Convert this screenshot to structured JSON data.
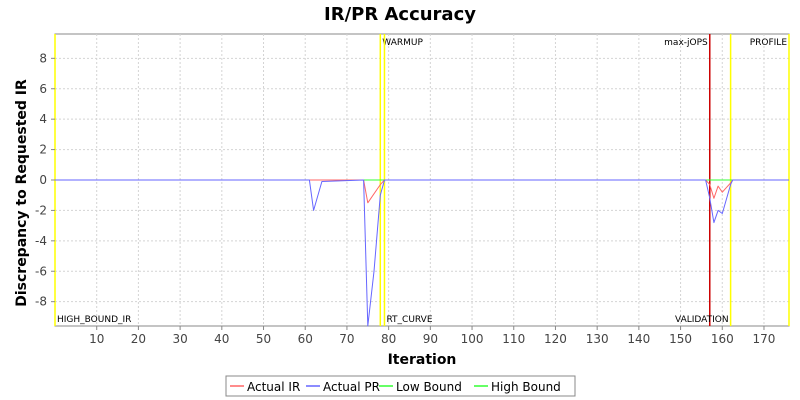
{
  "chart_data": {
    "type": "line",
    "title": "IR/PR Accuracy",
    "xlabel": "Iteration",
    "ylabel": "Discrepancy to Requested IR",
    "xlim": [
      0,
      176
    ],
    "ylim": [
      -9.6,
      9.6
    ],
    "x_ticks": [
      10,
      20,
      30,
      40,
      50,
      60,
      70,
      80,
      90,
      100,
      110,
      120,
      130,
      140,
      150,
      160,
      170
    ],
    "y_ticks": [
      8,
      6,
      4,
      2,
      0,
      -2,
      -4,
      -6,
      -8
    ],
    "grid": true,
    "legend_position": "bottom",
    "markers": [
      {
        "label": "HIGH_BOUND_IR",
        "x": 0,
        "color": "#ffff00",
        "label_pos": "bottom-right"
      },
      {
        "label": "WARMUP",
        "x": 78,
        "color": "#ffff00",
        "label_pos": "top-right"
      },
      {
        "label": "RT_CURVE",
        "x": 79,
        "color": "#ffff00",
        "label_pos": "bottom-right"
      },
      {
        "label": "max-jOPS",
        "x": 157,
        "color": "#cc0000",
        "label_pos": "top-left"
      },
      {
        "label": "VALIDATION",
        "x": 162,
        "color": "#ffff00",
        "label_pos": "bottom-left"
      },
      {
        "label": "PROFILE",
        "x": 176,
        "color": "#ffff00",
        "label_pos": "top-left"
      }
    ],
    "series": [
      {
        "name": "Actual IR",
        "color": "#ff6666",
        "points": [
          [
            0,
            0
          ],
          [
            74,
            0
          ],
          [
            75,
            -1.5
          ],
          [
            78,
            -0.3
          ],
          [
            79,
            0
          ],
          [
            156,
            0
          ],
          [
            157,
            -0.3
          ],
          [
            158,
            -1.2
          ],
          [
            159,
            -0.4
          ],
          [
            160,
            -0.8
          ],
          [
            161,
            -0.5
          ],
          [
            162,
            -0.2
          ],
          [
            162.5,
            0
          ],
          [
            176,
            0
          ]
        ]
      },
      {
        "name": "Actual PR",
        "color": "#6666ff",
        "points": [
          [
            0,
            0
          ],
          [
            60,
            0
          ],
          [
            61,
            0
          ],
          [
            62,
            -2.0
          ],
          [
            64,
            -0.1
          ],
          [
            74,
            0
          ],
          [
            75,
            -9.6
          ],
          [
            76.5,
            -6.0
          ],
          [
            78,
            -1.0
          ],
          [
            79,
            0
          ],
          [
            156,
            0
          ],
          [
            157,
            -1.2
          ],
          [
            158,
            -2.8
          ],
          [
            159,
            -2.0
          ],
          [
            160,
            -2.2
          ],
          [
            162,
            -0.3
          ],
          [
            162.5,
            0
          ],
          [
            176,
            0
          ]
        ]
      },
      {
        "name": "Low Bound",
        "color": "#33ff33",
        "points": [
          [
            0,
            0
          ],
          [
            78,
            0
          ],
          [
            162,
            0
          ],
          [
            176,
            0
          ]
        ]
      },
      {
        "name": "High Bound",
        "color": "#33ff33",
        "points": [
          [
            0,
            0
          ],
          [
            78,
            0
          ],
          [
            162,
            0
          ],
          [
            176,
            0
          ]
        ]
      }
    ]
  }
}
